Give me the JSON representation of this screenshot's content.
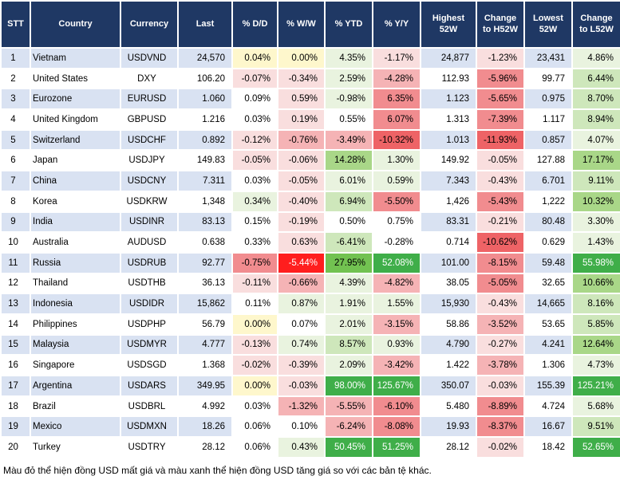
{
  "palette": {
    "header_bg": "#1F3864",
    "header_text": "#FFFFFF",
    "stripe_odd": "#D9E2F2",
    "stripe_even": "#FFFFFF",
    "body_text": "#000000",
    "heat": {
      "y": "#FEF7CC",
      "w": "#FFFFFF",
      "r1": "#F9DEDE",
      "r2": "#F5B3B5",
      "r3": "#F18C8F",
      "r4": "#EE6366",
      "r5": "#FF1E1E",
      "g1": "#E9F3DF",
      "g2": "#CEE7BB",
      "g3": "#A9D788",
      "g4": "#72C251",
      "g5": "#3FAE49"
    },
    "light_text_tokens": [
      "r5",
      "g5"
    ]
  },
  "chart_data": {
    "type": "table",
    "columns": [
      "STT",
      "Country",
      "Currency",
      "Last",
      "% D/D",
      "% W/W",
      "% YTD",
      "% Y/Y",
      "Highest 52W",
      "Change to H52W",
      "Lowest 52W",
      "Change to L52W"
    ],
    "rows": [
      {
        "stt": "1",
        "country": "Vietnam",
        "currency": "USDVND",
        "last": "24,570",
        "dd": "0.04%",
        "ww": "0.00%",
        "ytd": "4.35%",
        "yy": "-1.17%",
        "high": "24,877",
        "chg_h": "-1.23%",
        "low": "23,431",
        "chg_l": "4.86%",
        "colors": {
          "dd": "y",
          "ww": "y",
          "ytd": "g1",
          "yy": "r1",
          "chg_h": "r1",
          "chg_l": "g1"
        }
      },
      {
        "stt": "2",
        "country": "United States",
        "currency": "DXY",
        "last": "106.20",
        "dd": "-0.07%",
        "ww": "-0.34%",
        "ytd": "2.59%",
        "yy": "-4.28%",
        "high": "112.93",
        "chg_h": "-5.96%",
        "low": "99.77",
        "chg_l": "6.44%",
        "colors": {
          "dd": "r1",
          "ww": "r1",
          "ytd": "g1",
          "yy": "r2",
          "chg_h": "r3",
          "chg_l": "g2"
        }
      },
      {
        "stt": "3",
        "country": "Eurozone",
        "currency": "EURUSD",
        "last": "1.060",
        "dd": "0.09%",
        "ww": "0.59%",
        "ytd": "-0.98%",
        "yy": "6.35%",
        "high": "1.123",
        "chg_h": "-5.65%",
        "low": "0.975",
        "chg_l": "8.70%",
        "colors": {
          "dd": "w",
          "ww": "r1",
          "ytd": "g1",
          "yy": "r3",
          "chg_h": "r3",
          "chg_l": "g2"
        }
      },
      {
        "stt": "4",
        "country": "United Kingdom",
        "currency": "GBPUSD",
        "last": "1.216",
        "dd": "0.03%",
        "ww": "0.19%",
        "ytd": "0.55%",
        "yy": "6.07%",
        "high": "1.313",
        "chg_h": "-7.39%",
        "low": "1.117",
        "chg_l": "8.94%",
        "colors": {
          "dd": "w",
          "ww": "r1",
          "ytd": "w",
          "yy": "r3",
          "chg_h": "r3",
          "chg_l": "g2"
        }
      },
      {
        "stt": "5",
        "country": "Switzerland",
        "currency": "USDCHF",
        "last": "0.892",
        "dd": "-0.12%",
        "ww": "-0.76%",
        "ytd": "-3.49%",
        "yy": "-10.32%",
        "high": "1.013",
        "chg_h": "-11.93%",
        "low": "0.857",
        "chg_l": "4.07%",
        "colors": {
          "dd": "r1",
          "ww": "r2",
          "ytd": "r2",
          "yy": "r4",
          "chg_h": "r4",
          "chg_l": "g1"
        }
      },
      {
        "stt": "6",
        "country": "Japan",
        "currency": "USDJPY",
        "last": "149.83",
        "dd": "-0.05%",
        "ww": "-0.06%",
        "ytd": "14.28%",
        "yy": "1.30%",
        "high": "149.92",
        "chg_h": "-0.05%",
        "low": "127.88",
        "chg_l": "17.17%",
        "colors": {
          "dd": "r1",
          "ww": "r1",
          "ytd": "g3",
          "yy": "g1",
          "chg_h": "r1",
          "chg_l": "g3"
        }
      },
      {
        "stt": "7",
        "country": "China",
        "currency": "USDCNY",
        "last": "7.311",
        "dd": "0.03%",
        "ww": "-0.05%",
        "ytd": "6.01%",
        "yy": "0.59%",
        "high": "7.343",
        "chg_h": "-0.43%",
        "low": "6.701",
        "chg_l": "9.11%",
        "colors": {
          "dd": "w",
          "ww": "r1",
          "ytd": "g1",
          "yy": "g1",
          "chg_h": "r1",
          "chg_l": "g2"
        }
      },
      {
        "stt": "8",
        "country": "Korea",
        "currency": "USDKRW",
        "last": "1,348",
        "dd": "0.34%",
        "ww": "-0.40%",
        "ytd": "6.94%",
        "yy": "-5.50%",
        "high": "1,426",
        "chg_h": "-5.43%",
        "low": "1,222",
        "chg_l": "10.32%",
        "colors": {
          "dd": "g1",
          "ww": "r1",
          "ytd": "g2",
          "yy": "r3",
          "chg_h": "r3",
          "chg_l": "g3"
        }
      },
      {
        "stt": "9",
        "country": "India",
        "currency": "USDINR",
        "last": "83.13",
        "dd": "0.15%",
        "ww": "-0.19%",
        "ytd": "0.50%",
        "yy": "0.75%",
        "high": "83.31",
        "chg_h": "-0.21%",
        "low": "80.48",
        "chg_l": "3.30%",
        "colors": {
          "dd": "w",
          "ww": "r1",
          "ytd": "w",
          "yy": "w",
          "chg_h": "r1",
          "chg_l": "g1"
        }
      },
      {
        "stt": "10",
        "country": "Australia",
        "currency": "AUDUSD",
        "last": "0.638",
        "dd": "0.33%",
        "ww": "0.63%",
        "ytd": "-6.41%",
        "yy": "-0.28%",
        "high": "0.714",
        "chg_h": "-10.62%",
        "low": "0.629",
        "chg_l": "1.43%",
        "colors": {
          "dd": "w",
          "ww": "r1",
          "ytd": "g2",
          "yy": "w",
          "chg_h": "r4",
          "chg_l": "g1"
        }
      },
      {
        "stt": "11",
        "country": "Russia",
        "currency": "USDRUB",
        "last": "92.77",
        "dd": "-0.75%",
        "ww": "-5.44%",
        "ytd": "27.95%",
        "yy": "52.08%",
        "high": "101.00",
        "chg_h": "-8.15%",
        "low": "59.48",
        "chg_l": "55.98%",
        "colors": {
          "dd": "r3",
          "ww": "r5",
          "ytd": "g4",
          "yy": "g5",
          "chg_h": "r3",
          "chg_l": "g5"
        }
      },
      {
        "stt": "12",
        "country": "Thailand",
        "currency": "USDTHB",
        "last": "36.13",
        "dd": "-0.11%",
        "ww": "-0.66%",
        "ytd": "4.39%",
        "yy": "-4.82%",
        "high": "38.05",
        "chg_h": "-5.05%",
        "low": "32.65",
        "chg_l": "10.66%",
        "colors": {
          "dd": "r1",
          "ww": "r2",
          "ytd": "g1",
          "yy": "r2",
          "chg_h": "r3",
          "chg_l": "g3"
        }
      },
      {
        "stt": "13",
        "country": "Indonesia",
        "currency": "USDIDR",
        "last": "15,862",
        "dd": "0.11%",
        "ww": "0.87%",
        "ytd": "1.91%",
        "yy": "1.55%",
        "high": "15,930",
        "chg_h": "-0.43%",
        "low": "14,665",
        "chg_l": "8.16%",
        "colors": {
          "dd": "w",
          "ww": "g1",
          "ytd": "g1",
          "yy": "g1",
          "chg_h": "r1",
          "chg_l": "g2"
        }
      },
      {
        "stt": "14",
        "country": "Philippines",
        "currency": "USDPHP",
        "last": "56.79",
        "dd": "0.00%",
        "ww": "0.07%",
        "ytd": "2.01%",
        "yy": "-3.15%",
        "high": "58.86",
        "chg_h": "-3.52%",
        "low": "53.65",
        "chg_l": "5.85%",
        "colors": {
          "dd": "y",
          "ww": "w",
          "ytd": "g1",
          "yy": "r2",
          "chg_h": "r2",
          "chg_l": "g2"
        }
      },
      {
        "stt": "15",
        "country": "Malaysia",
        "currency": "USDMYR",
        "last": "4.777",
        "dd": "-0.13%",
        "ww": "0.74%",
        "ytd": "8.57%",
        "yy": "0.93%",
        "high": "4.790",
        "chg_h": "-0.27%",
        "low": "4.241",
        "chg_l": "12.64%",
        "colors": {
          "dd": "r1",
          "ww": "g1",
          "ytd": "g2",
          "yy": "g1",
          "chg_h": "r1",
          "chg_l": "g3"
        }
      },
      {
        "stt": "16",
        "country": "Singapore",
        "currency": "USDSGD",
        "last": "1.368",
        "dd": "-0.02%",
        "ww": "-0.39%",
        "ytd": "2.09%",
        "yy": "-3.42%",
        "high": "1.422",
        "chg_h": "-3.78%",
        "low": "1.306",
        "chg_l": "4.73%",
        "colors": {
          "dd": "r1",
          "ww": "r1",
          "ytd": "g1",
          "yy": "r2",
          "chg_h": "r2",
          "chg_l": "g1"
        }
      },
      {
        "stt": "17",
        "country": "Argentina",
        "currency": "USDARS",
        "last": "349.95",
        "dd": "0.00%",
        "ww": "-0.03%",
        "ytd": "98.00%",
        "yy": "125.67%",
        "high": "350.07",
        "chg_h": "-0.03%",
        "low": "155.39",
        "chg_l": "125.21%",
        "colors": {
          "dd": "y",
          "ww": "r1",
          "ytd": "g5",
          "yy": "g5",
          "chg_h": "r1",
          "chg_l": "g5"
        }
      },
      {
        "stt": "18",
        "country": "Brazil",
        "currency": "USDBRL",
        "last": "4.992",
        "dd": "0.03%",
        "ww": "-1.32%",
        "ytd": "-5.55%",
        "yy": "-6.10%",
        "high": "5.480",
        "chg_h": "-8.89%",
        "low": "4.724",
        "chg_l": "5.68%",
        "colors": {
          "dd": "w",
          "ww": "r2",
          "ytd": "r2",
          "yy": "r3",
          "chg_h": "r3",
          "chg_l": "g1"
        }
      },
      {
        "stt": "19",
        "country": "Mexico",
        "currency": "USDMXN",
        "last": "18.26",
        "dd": "0.06%",
        "ww": "0.10%",
        "ytd": "-6.24%",
        "yy": "-8.08%",
        "high": "19.93",
        "chg_h": "-8.37%",
        "low": "16.67",
        "chg_l": "9.51%",
        "colors": {
          "dd": "w",
          "ww": "w",
          "ytd": "r2",
          "yy": "r3",
          "chg_h": "r3",
          "chg_l": "g2"
        }
      },
      {
        "stt": "20",
        "country": "Turkey",
        "currency": "USDTRY",
        "last": "28.12",
        "dd": "0.06%",
        "ww": "0.43%",
        "ytd": "50.45%",
        "yy": "51.25%",
        "high": "28.12",
        "chg_h": "-0.02%",
        "low": "18.42",
        "chg_l": "52.65%",
        "colors": {
          "dd": "w",
          "ww": "g1",
          "ytd": "g5",
          "yy": "g5",
          "chg_h": "r1",
          "chg_l": "g5"
        }
      }
    ]
  },
  "footer": {
    "note": "Màu đỏ thể hiện đồng USD mất giá và màu xanh thể hiện đồng USD tăng giá so với các bản tệ khác."
  }
}
